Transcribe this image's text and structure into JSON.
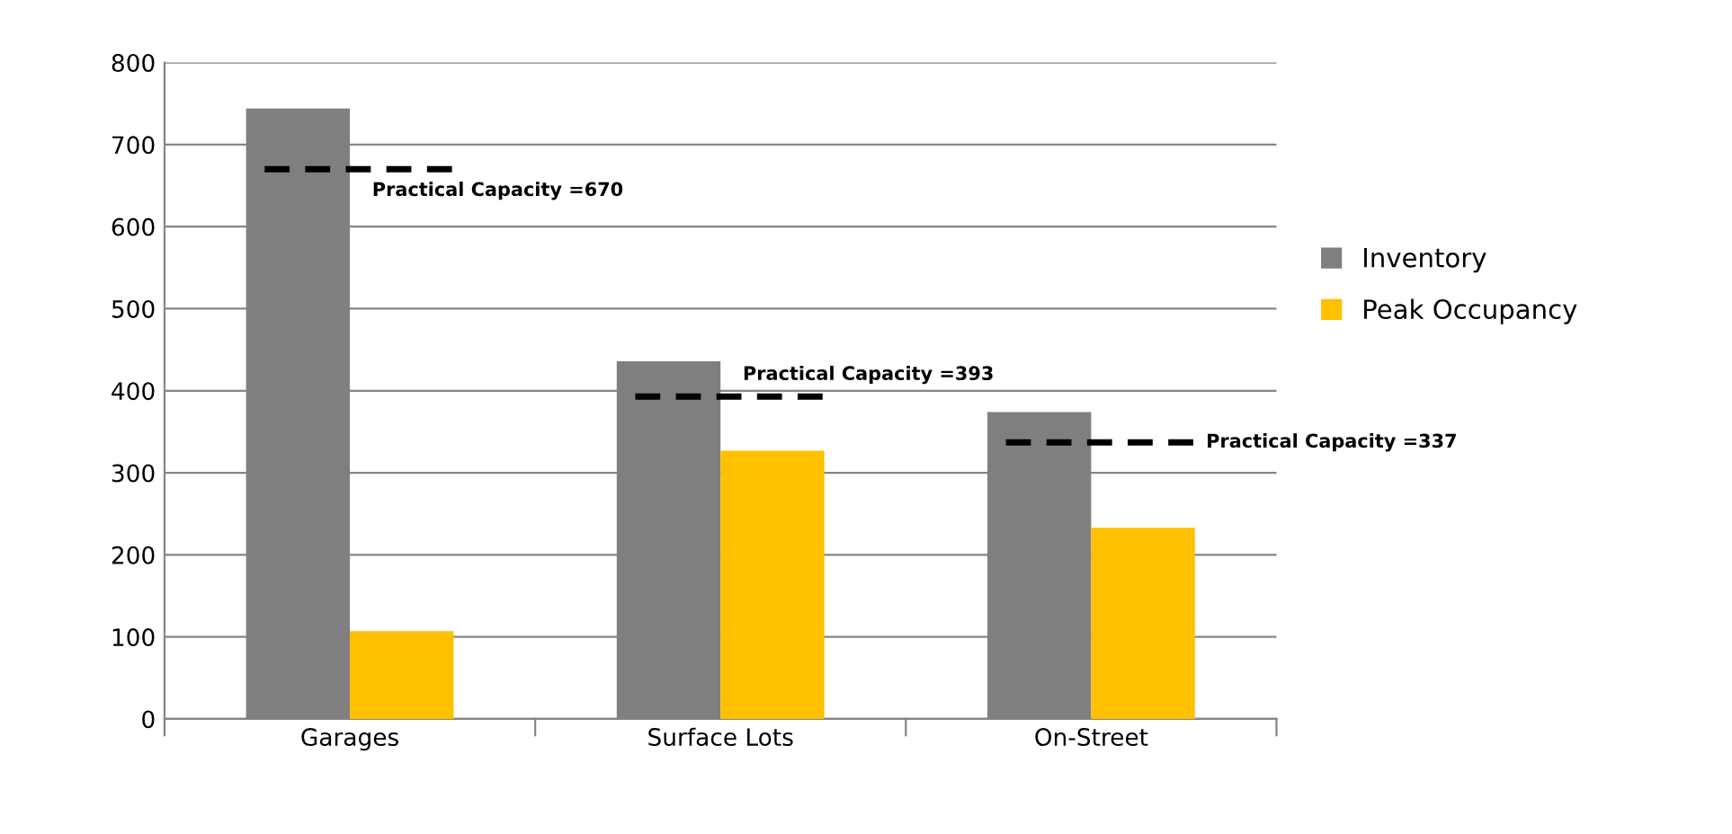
{
  "chart_data": {
    "type": "bar",
    "categories": [
      "Garages",
      "Surface Lots",
      "On-Street"
    ],
    "series": [
      {
        "name": "Inventory",
        "color": "#7f7f7f",
        "values": [
          744,
          436,
          374
        ]
      },
      {
        "name": "Peak Occupancy",
        "color": "#ffc000",
        "values": [
          107,
          327,
          233
        ]
      }
    ],
    "ylim": [
      0,
      800
    ],
    "yticks": [
      0,
      100,
      200,
      300,
      400,
      500,
      600,
      700,
      800
    ],
    "grid": "y",
    "legend": "right",
    "ref_lines": [
      {
        "axis": "y",
        "value": 670,
        "label": "Practical Capacity =670",
        "color": "#000000",
        "line_style": "dashed"
      },
      {
        "axis": "y",
        "value": 393,
        "label": "Practical Capacity =393",
        "color": "#000000",
        "line_style": "dashed"
      },
      {
        "axis": "y",
        "value": 337,
        "label": "Practical Capacity =337",
        "color": "#000000",
        "line_style": "dashed"
      }
    ]
  }
}
